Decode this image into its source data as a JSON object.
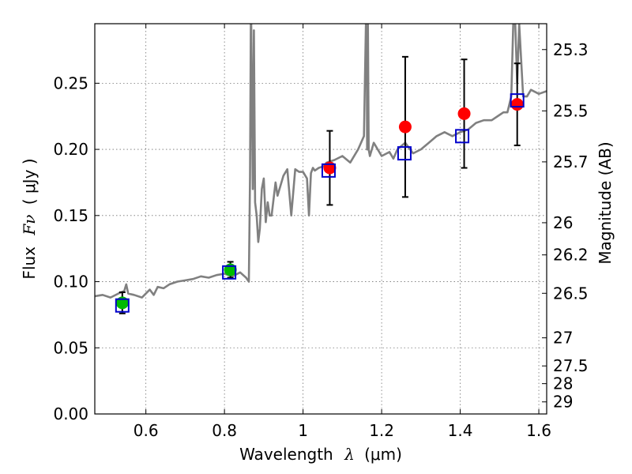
{
  "chart_data": {
    "type": "line+scatter",
    "xlabel_text": "Wavelength",
    "xlabel_symbol": "λ",
    "xlabel_unit": "(μm)",
    "ylabel_text": "Flux",
    "ylabel_symbol": "Fν",
    "ylabel_unit": "( μJy )",
    "y2label": "Magnitude (AB)",
    "xlim": [
      0.47,
      1.62
    ],
    "ylim": [
      0.0,
      0.295
    ],
    "x_ticks": [
      0.6,
      0.8,
      1.0,
      1.2,
      1.4,
      1.6
    ],
    "x_tick_labels": [
      "0.6",
      "0.8",
      "1",
      "1.2",
      "1.4",
      "1.6"
    ],
    "y_ticks": [
      0.0,
      0.05,
      0.1,
      0.15,
      0.2,
      0.25
    ],
    "y_tick_labels": [
      "0.00",
      "0.05",
      "0.10",
      "0.15",
      "0.20",
      "0.25"
    ],
    "mag_ticks": [
      25.3,
      25.5,
      25.7,
      26,
      26.2,
      26.5,
      27,
      27.5,
      28,
      29
    ],
    "mag_tick_labels": [
      "25.3",
      "25.5",
      "25.7",
      "26",
      "26.2",
      "26.5",
      "27",
      "27.5",
      "28",
      "29"
    ],
    "grid": true,
    "spectrum": {
      "name": "template spectrum",
      "color": "#808080",
      "x": [
        0.47,
        0.49,
        0.51,
        0.53,
        0.545,
        0.55,
        0.555,
        0.57,
        0.59,
        0.61,
        0.62,
        0.63,
        0.645,
        0.66,
        0.68,
        0.7,
        0.72,
        0.74,
        0.76,
        0.78,
        0.8,
        0.82,
        0.84,
        0.855,
        0.862,
        0.865,
        0.867,
        0.868,
        0.872,
        0.875,
        0.878,
        0.882,
        0.886,
        0.89,
        0.895,
        0.9,
        0.905,
        0.91,
        0.915,
        0.92,
        0.93,
        0.935,
        0.94,
        0.95,
        0.96,
        0.97,
        0.98,
        0.99,
        1.0,
        1.01,
        1.015,
        1.02,
        1.025,
        1.03,
        1.04,
        1.05,
        1.06,
        1.08,
        1.1,
        1.12,
        1.14,
        1.155,
        1.16,
        1.162,
        1.163,
        1.165,
        1.167,
        1.17,
        1.18,
        1.2,
        1.22,
        1.23,
        1.24,
        1.26,
        1.28,
        1.3,
        1.32,
        1.34,
        1.36,
        1.38,
        1.4,
        1.42,
        1.44,
        1.46,
        1.48,
        1.5,
        1.51,
        1.52,
        1.53,
        1.535,
        1.54,
        1.545,
        1.55,
        1.56,
        1.57,
        1.58,
        1.6,
        1.62
      ],
      "y": [
        0.089,
        0.09,
        0.088,
        0.091,
        0.093,
        0.098,
        0.091,
        0.09,
        0.088,
        0.094,
        0.09,
        0.096,
        0.095,
        0.098,
        0.1,
        0.101,
        0.102,
        0.104,
        0.103,
        0.105,
        0.106,
        0.104,
        0.107,
        0.103,
        0.1,
        0.18,
        0.295,
        0.295,
        0.17,
        0.29,
        0.16,
        0.15,
        0.13,
        0.14,
        0.17,
        0.178,
        0.145,
        0.16,
        0.15,
        0.15,
        0.175,
        0.165,
        0.17,
        0.18,
        0.185,
        0.15,
        0.185,
        0.183,
        0.183,
        0.178,
        0.15,
        0.182,
        0.186,
        0.184,
        0.186,
        0.187,
        0.19,
        0.192,
        0.195,
        0.19,
        0.2,
        0.21,
        0.295,
        0.295,
        0.2,
        0.295,
        0.2,
        0.195,
        0.205,
        0.195,
        0.198,
        0.193,
        0.2,
        0.205,
        0.197,
        0.2,
        0.205,
        0.21,
        0.213,
        0.21,
        0.213,
        0.215,
        0.22,
        0.222,
        0.222,
        0.226,
        0.228,
        0.228,
        0.24,
        0.295,
        0.295,
        0.25,
        0.295,
        0.24,
        0.24,
        0.245,
        0.242,
        0.244
      ]
    },
    "green_points": {
      "name": "green photometry",
      "color": "#00bb00",
      "x": [
        0.54,
        0.815
      ],
      "y": [
        0.084,
        0.109
      ],
      "err": [
        0.008,
        0.006
      ]
    },
    "red_points": {
      "name": "red photometry",
      "color": "#ff0000",
      "x": [
        1.068,
        1.26,
        1.41,
        1.545
      ],
      "y": [
        0.186,
        0.217,
        0.227,
        0.234
      ],
      "err": [
        0.028,
        0.053,
        0.041,
        0.031
      ]
    },
    "model_boxes": {
      "name": "model fluxes",
      "color": "#0000cc",
      "x": [
        0.54,
        0.812,
        1.065,
        1.258,
        1.405,
        1.545
      ],
      "y": [
        0.082,
        0.107,
        0.184,
        0.197,
        0.21,
        0.237
      ]
    }
  }
}
